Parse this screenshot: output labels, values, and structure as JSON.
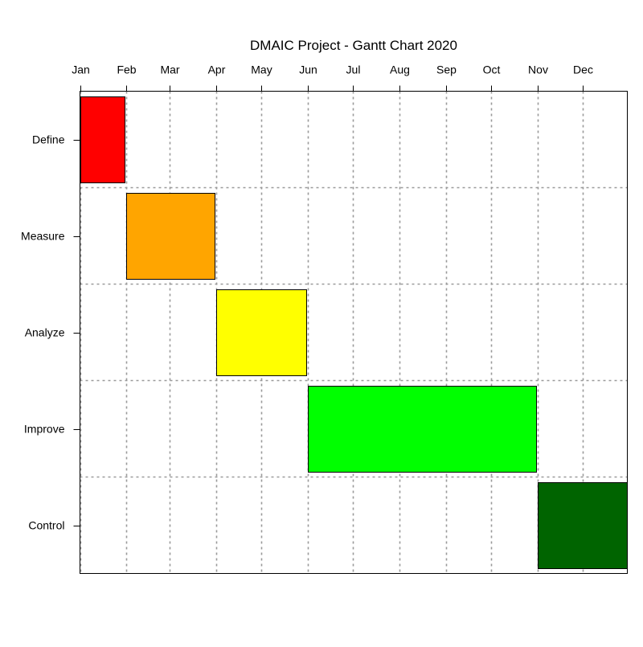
{
  "chart_data": {
    "type": "gantt",
    "title": "DMAIC Project - Gantt Chart 2020",
    "xlabel": "",
    "ylabel": "",
    "x_axis_position": "top",
    "x_tick_labels": [
      "Jan",
      "Feb",
      "Mar",
      "Apr",
      "May",
      "Jun",
      "Jul",
      "Aug",
      "Sep",
      "Oct",
      "Nov",
      "Dec"
    ],
    "x_ticks": [
      "2020-01-01",
      "2020-02-01",
      "2020-03-01",
      "2020-04-01",
      "2020-05-01",
      "2020-06-01",
      "2020-07-01",
      "2020-08-01",
      "2020-09-01",
      "2020-10-01",
      "2020-11-01",
      "2020-12-01"
    ],
    "xlim": [
      "2020-01-01",
      "2020-12-31"
    ],
    "grid": true,
    "tasks": [
      {
        "label": "Define",
        "start": "2020-01-01",
        "end": "2020-01-31",
        "color": "#ff0000"
      },
      {
        "label": "Measure",
        "start": "2020-02-01",
        "end": "2020-03-31",
        "color": "#ffa500"
      },
      {
        "label": "Analyze",
        "start": "2020-04-01",
        "end": "2020-05-31",
        "color": "#ffff00"
      },
      {
        "label": "Improve",
        "start": "2020-06-01",
        "end": "2020-10-31",
        "color": "#00ff00"
      },
      {
        "label": "Control",
        "start": "2020-11-01",
        "end": "2020-12-31",
        "color": "#006400"
      }
    ]
  }
}
